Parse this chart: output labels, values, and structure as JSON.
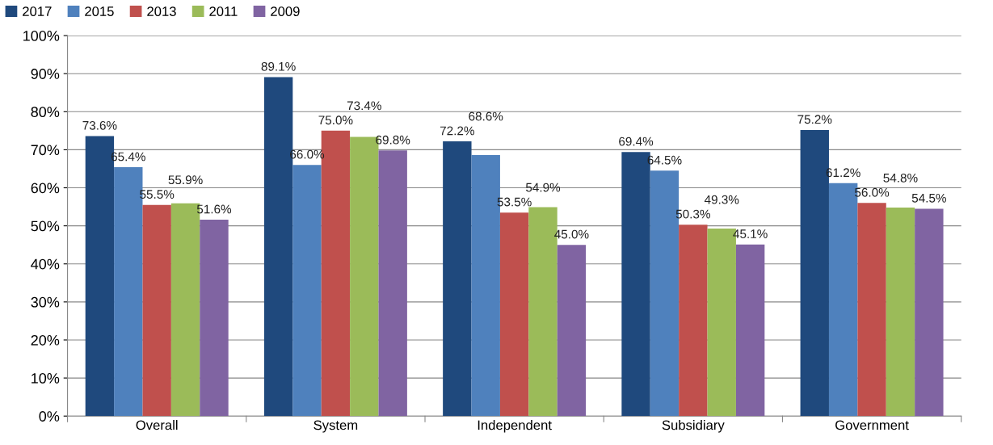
{
  "chart_data": {
    "type": "bar",
    "categories": [
      "Overall",
      "System",
      "Independent",
      "Subsidiary",
      "Government"
    ],
    "series": [
      {
        "name": "2017",
        "color": "#1f497d",
        "values": [
          73.6,
          89.1,
          72.2,
          69.4,
          75.2
        ],
        "value_labels": [
          "73.6%",
          "89.1%",
          "72.2%",
          "69.4%",
          "75.2%"
        ]
      },
      {
        "name": "2015",
        "color": "#4f81bd",
        "values": [
          65.4,
          66.0,
          68.6,
          64.5,
          61.2
        ],
        "value_labels": [
          "65.4%",
          "66.0%",
          "68.6%",
          "64.5%",
          "61.2%"
        ]
      },
      {
        "name": "2013",
        "color": "#c0504d",
        "values": [
          55.5,
          75.0,
          53.5,
          50.3,
          56.0
        ],
        "value_labels": [
          "55.5%",
          "75.0%",
          "53.5%",
          "50.3%",
          "56.0%"
        ]
      },
      {
        "name": "2011",
        "color": "#9bbb59",
        "values": [
          55.9,
          73.4,
          54.9,
          49.3,
          54.8
        ],
        "value_labels": [
          "55.9%",
          "73.4%",
          "54.9%",
          "49.3%",
          "54.8%"
        ]
      },
      {
        "name": "2009",
        "color": "#8064a2",
        "values": [
          51.6,
          69.8,
          45.0,
          45.1,
          54.5
        ],
        "value_labels": [
          "51.6%",
          "69.8%",
          "45.0%",
          "45.1%",
          "54.5%"
        ]
      }
    ],
    "ylim": [
      0,
      100
    ],
    "yticks": [
      {
        "value": 0,
        "label": "0%"
      },
      {
        "value": 10,
        "label": "10%"
      },
      {
        "value": 20,
        "label": "20%"
      },
      {
        "value": 30,
        "label": "30%"
      },
      {
        "value": 40,
        "label": "40%"
      },
      {
        "value": 50,
        "label": "50%"
      },
      {
        "value": 60,
        "label": "60%"
      },
      {
        "value": 70,
        "label": "70%"
      },
      {
        "value": 80,
        "label": "80%"
      },
      {
        "value": 90,
        "label": "90%"
      },
      {
        "value": 100,
        "label": "100%"
      }
    ],
    "grid": "y",
    "legend": "top left"
  }
}
